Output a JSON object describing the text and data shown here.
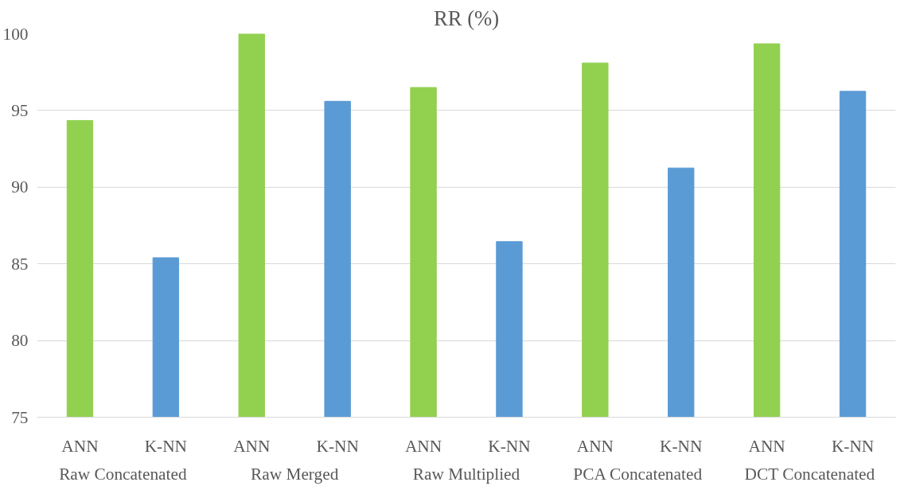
{
  "chart_data": {
    "type": "bar",
    "title": "RR (%)",
    "categories": [
      "ANN",
      "K-NN",
      "ANN",
      "K-NN",
      "ANN",
      "K-NN",
      "ANN",
      "K-NN",
      "ANN",
      "K-NN"
    ],
    "values": [
      94.35,
      85.4,
      100,
      95.6,
      96.5,
      86.45,
      98.1,
      91.25,
      99.35,
      96.25
    ],
    "colors": [
      "#92d050",
      "#5b9bd5",
      "#92d050",
      "#5b9bd5",
      "#92d050",
      "#5b9bd5",
      "#92d050",
      "#5b9bd5",
      "#92d050",
      "#5b9bd5"
    ],
    "annotations": [
      "Raw Concatenated",
      "Raw Merged",
      "Raw Multiplied",
      "PCA Concatenated",
      "DCT Concatenated"
    ],
    "ylim": [
      75,
      100
    ],
    "yticks": [
      75,
      80,
      85,
      90,
      95,
      100
    ],
    "grid": "y"
  }
}
